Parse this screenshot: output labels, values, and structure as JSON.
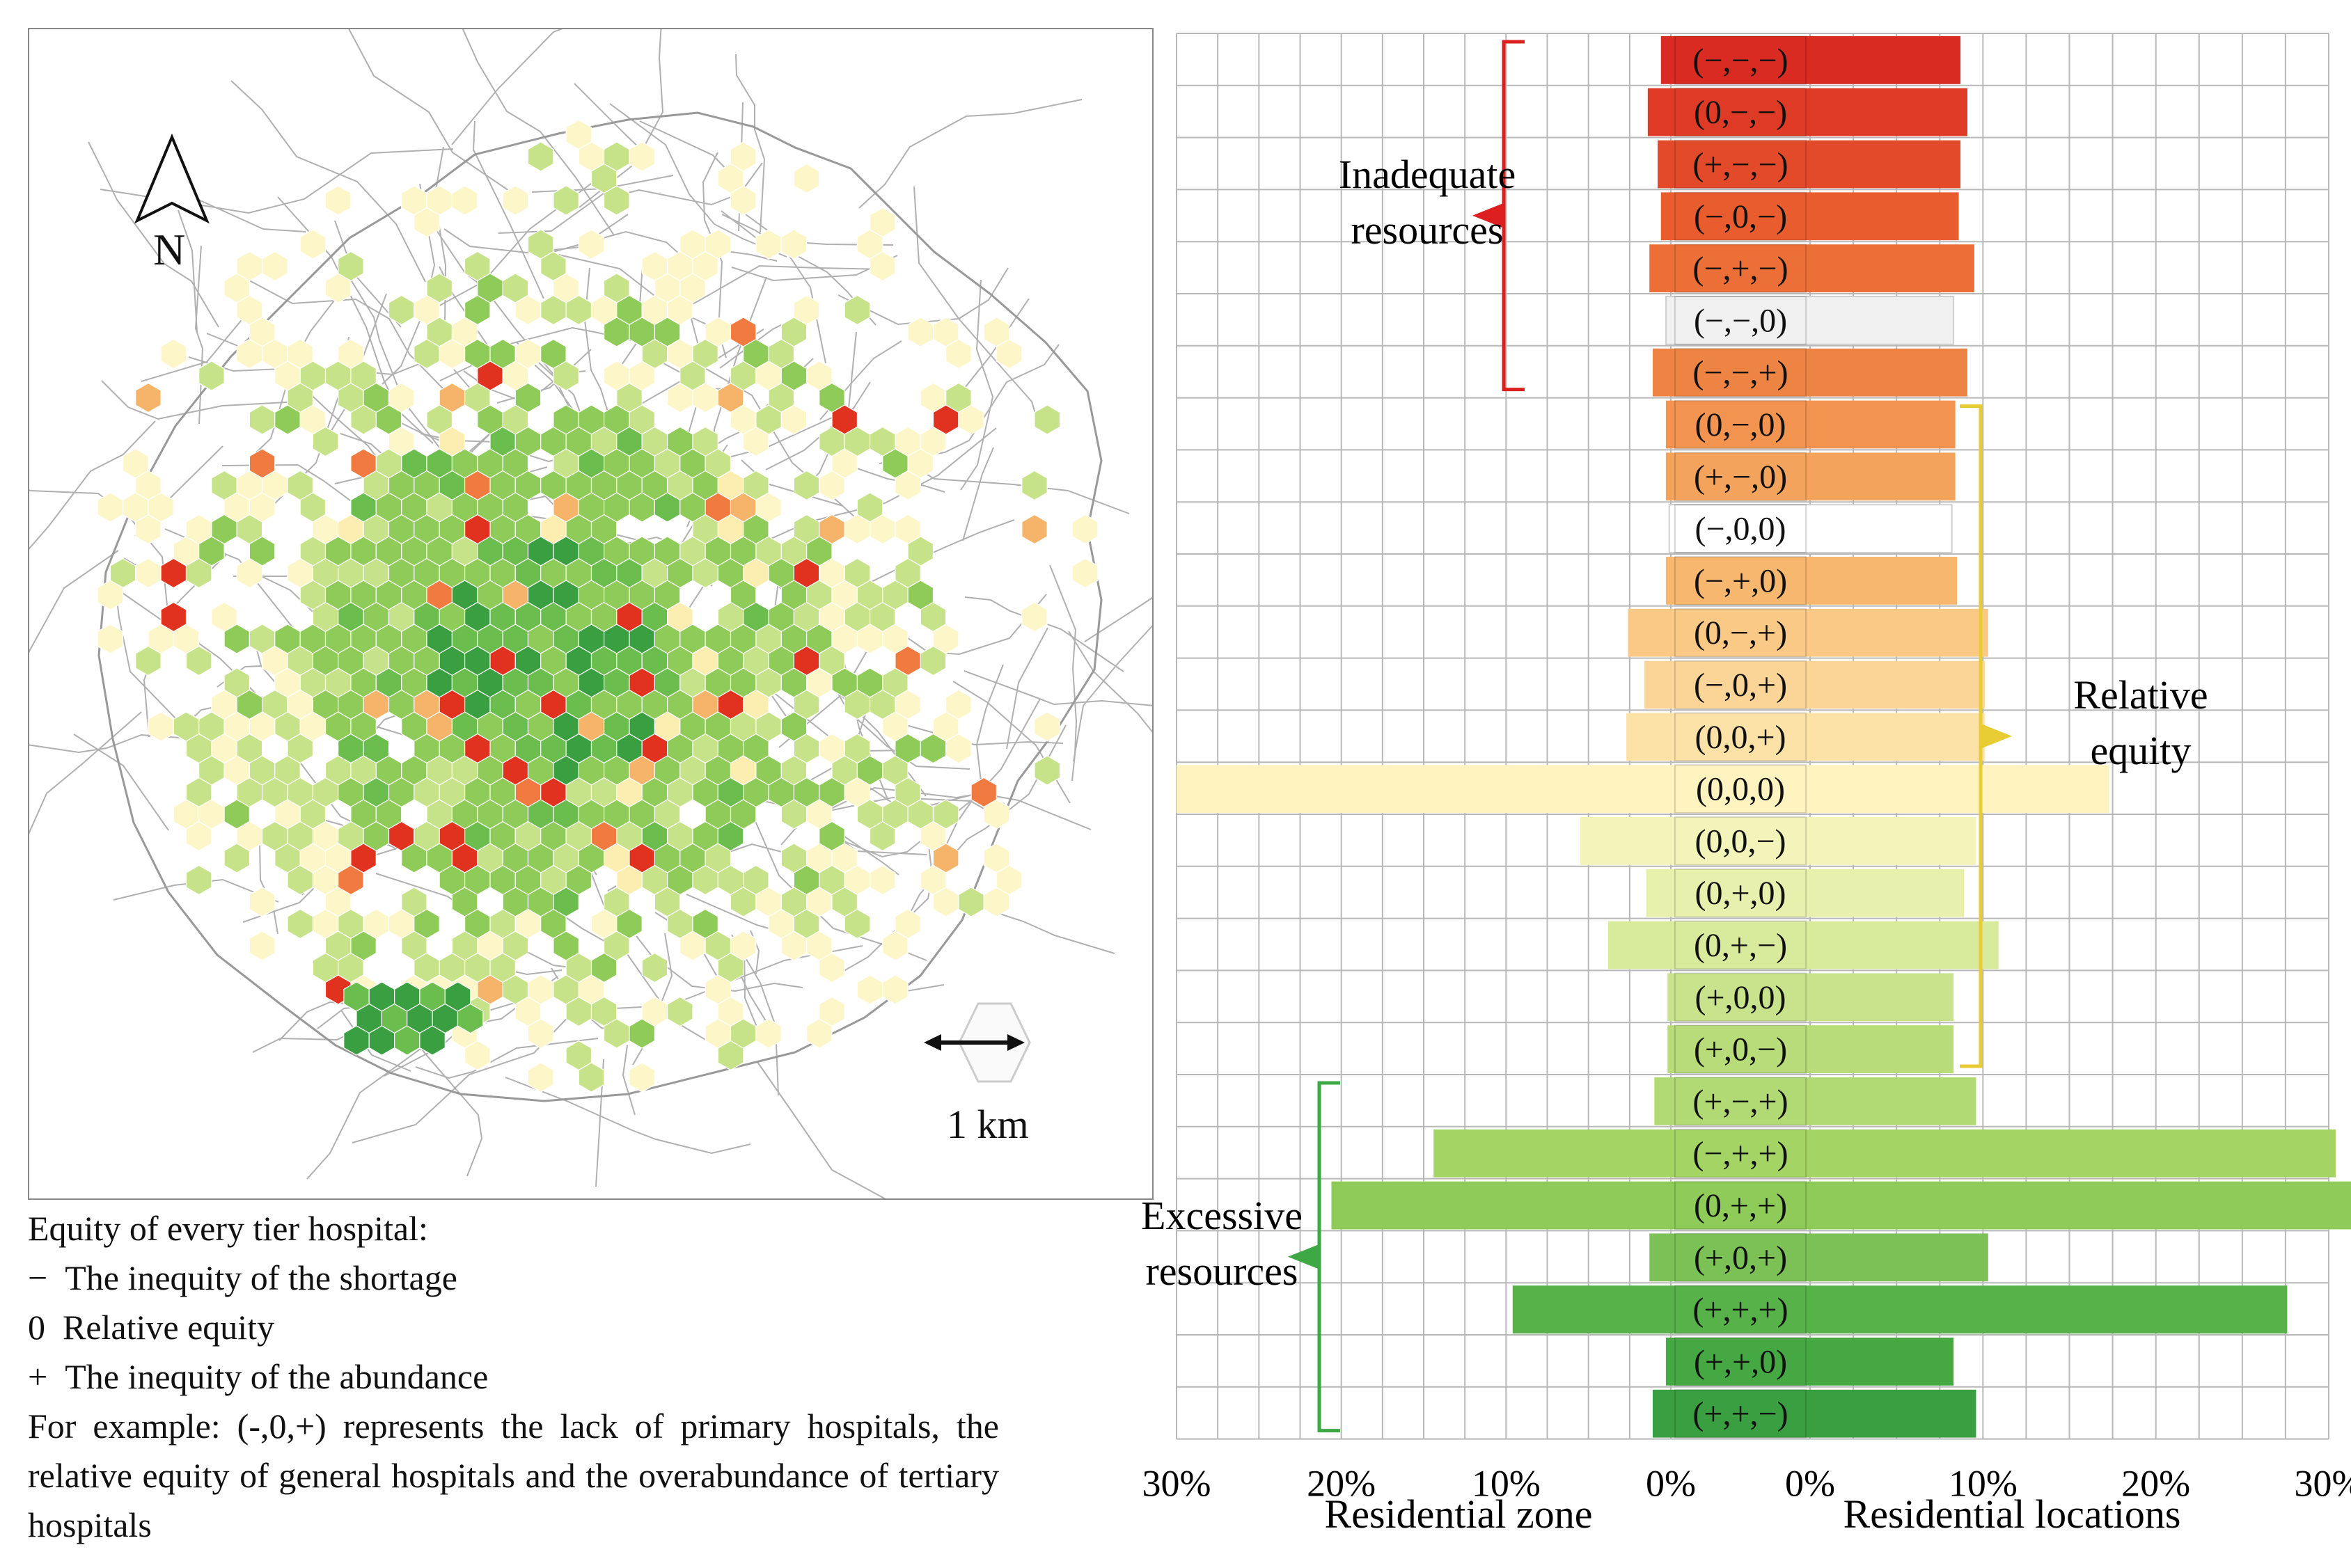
{
  "map": {
    "north_label": "N",
    "scale_label": "1 km"
  },
  "legend": {
    "title": "Equity of every tier hospital:",
    "items": [
      {
        "symbol": "−",
        "text": "The inequity of the shortage"
      },
      {
        "symbol": "0",
        "text": "Relative equity"
      },
      {
        "symbol": "+",
        "text": "The inequity of the abundance"
      }
    ],
    "example": "For example: (-,0,+) represents the lack of primary hospitals, the relative equity of general hospitals and the overabundance of tertiary hospitals"
  },
  "colors": {
    "road": "#b0b0b0",
    "grid": "#b8b8b8",
    "inadequate_bracket": "#dd1f1f",
    "equity_bracket": "#e8cc33",
    "excessive_bracket": "#3ea844"
  },
  "chart_data": {
    "type": "bar",
    "layout": "back-to-back horizontal",
    "left_label": "Residential zone",
    "right_label": "Residential locations",
    "x_ticks_left": [
      "30%",
      "20%",
      "10%",
      "0%"
    ],
    "x_ticks_right": [
      "0%",
      "10%",
      "20%",
      "30%"
    ],
    "xlim": [
      0,
      30
    ],
    "categories": [
      "(−,−,−)",
      "(0,−,−)",
      "(+,−,−)",
      "(−,0,−)",
      "(−,+,−)",
      "(−,−,0)",
      "(−,−,+)",
      "(0,−,0)",
      "(+,−,0)",
      "(−,0,0)",
      "(−,+,0)",
      "(0,−,+)",
      "(−,0,+)",
      "(0,0,+)",
      "(0,0,0)",
      "(0,0,−)",
      "(0,+,0)",
      "(0,+,−)",
      "(+,0,0)",
      "(+,0,−)",
      "(+,−,+)",
      "(−,+,+)",
      "(0,+,+)",
      "(+,0,+)",
      "(+,+,+)",
      "(+,+,0)",
      "(+,+,−)"
    ],
    "residential_zone": [
      0.6,
      1.4,
      0.8,
      0.6,
      1.3,
      0.3,
      1.1,
      0.3,
      0.3,
      0.1,
      0.3,
      2.6,
      1.6,
      2.7,
      30.0,
      5.5,
      1.5,
      3.8,
      0.2,
      0.2,
      1.0,
      14.4,
      20.6,
      1.3,
      9.6,
      0.3,
      1.1
    ],
    "residential_locations": [
      8.7,
      9.1,
      8.7,
      8.6,
      9.5,
      8.3,
      9.1,
      8.4,
      8.4,
      8.2,
      8.5,
      10.3,
      10.1,
      10.1,
      17.3,
      9.6,
      8.9,
      10.9,
      8.3,
      8.3,
      9.6,
      30.4,
      34.9,
      10.3,
      27.6,
      8.3,
      9.6
    ],
    "colors": [
      "#d92b22",
      "#df3a25",
      "#e24a2a",
      "#e85c2e",
      "#eb6f36",
      "#f0f0f0",
      "#ee8444",
      "#f29350",
      "#f4a35d",
      "#ffffff",
      "#f8b76e",
      "#fac986",
      "#fbd597",
      "#fde2a8",
      "#fff4c0",
      "#f2f4ba",
      "#e7f0ad",
      "#d8ea9c",
      "#c8e38b",
      "#b8dc7a",
      "#b2da74",
      "#a3d464",
      "#8fcb58",
      "#7bc155",
      "#57b24a",
      "#45a843",
      "#3a9f40"
    ],
    "groups": [
      {
        "label": [
          "Inadequate",
          "resources"
        ],
        "from": 0,
        "to": 6
      },
      {
        "label": [
          "Relative",
          "equity"
        ],
        "from": 7,
        "to": 19
      },
      {
        "label": [
          "Excessive",
          "resources"
        ],
        "from": 20,
        "to": 26
      }
    ]
  }
}
